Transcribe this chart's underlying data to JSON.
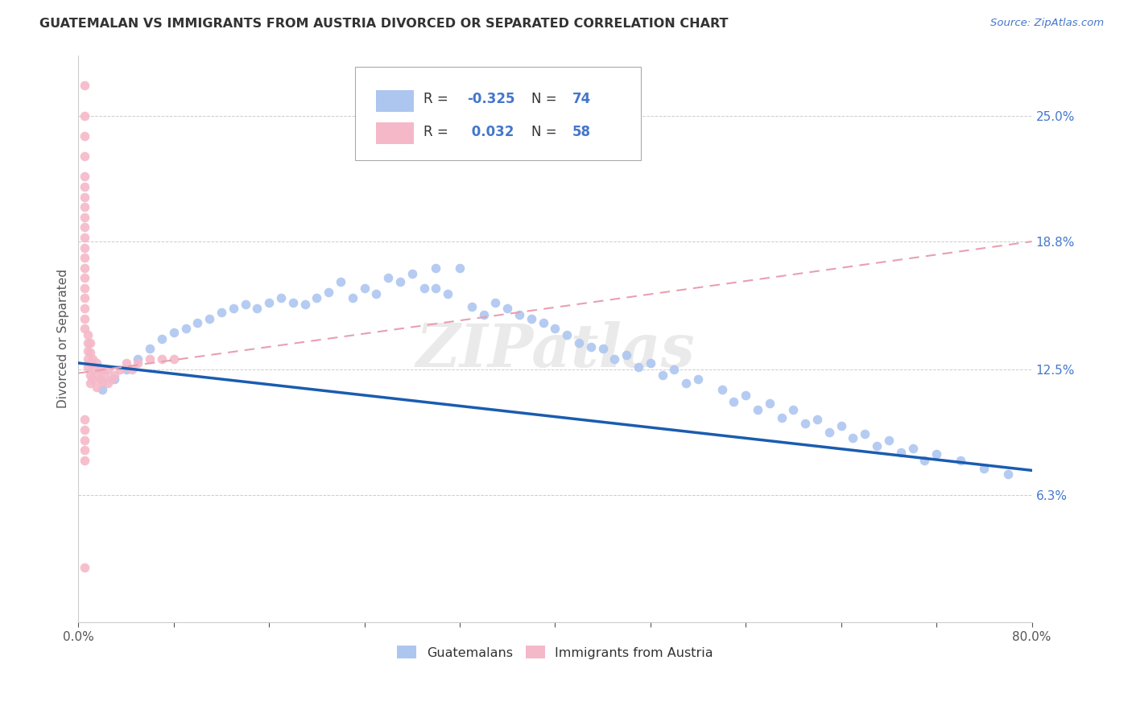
{
  "title": "GUATEMALAN VS IMMIGRANTS FROM AUSTRIA DIVORCED OR SEPARATED CORRELATION CHART",
  "source_text": "Source: ZipAtlas.com",
  "ylabel": "Divorced or Separated",
  "xlim": [
    0.0,
    0.8
  ],
  "ylim": [
    0.0,
    0.28
  ],
  "yticks": [
    0.063,
    0.125,
    0.188,
    0.25
  ],
  "ytick_labels": [
    "6.3%",
    "12.5%",
    "18.8%",
    "25.0%"
  ],
  "blue_color": "#adc6f0",
  "pink_color": "#f5b8c8",
  "blue_trend_color": "#1a5cb0",
  "pink_trend_color": "#e8a0b0",
  "blue_R": "-0.325",
  "blue_N": "74",
  "pink_R": "0.032",
  "pink_N": "58",
  "watermark": "ZIPatlas",
  "legend_label_blue": "Guatemalans",
  "legend_label_pink": "Immigrants from Austria",
  "blue_scatter_x": [
    0.32,
    0.3,
    0.28,
    0.26,
    0.27,
    0.29,
    0.22,
    0.24,
    0.25,
    0.23,
    0.21,
    0.2,
    0.19,
    0.18,
    0.17,
    0.16,
    0.15,
    0.14,
    0.13,
    0.12,
    0.11,
    0.1,
    0.09,
    0.08,
    0.07,
    0.06,
    0.05,
    0.04,
    0.03,
    0.02,
    0.35,
    0.36,
    0.37,
    0.38,
    0.39,
    0.4,
    0.42,
    0.44,
    0.46,
    0.48,
    0.5,
    0.52,
    0.54,
    0.56,
    0.58,
    0.6,
    0.62,
    0.64,
    0.66,
    0.68,
    0.7,
    0.72,
    0.74,
    0.76,
    0.78,
    0.3,
    0.31,
    0.33,
    0.34,
    0.41,
    0.43,
    0.45,
    0.47,
    0.49,
    0.51,
    0.55,
    0.57,
    0.59,
    0.61,
    0.63,
    0.65,
    0.67,
    0.69,
    0.71
  ],
  "blue_scatter_y": [
    0.175,
    0.175,
    0.172,
    0.17,
    0.168,
    0.165,
    0.168,
    0.165,
    0.162,
    0.16,
    0.163,
    0.16,
    0.157,
    0.158,
    0.16,
    0.158,
    0.155,
    0.157,
    0.155,
    0.153,
    0.15,
    0.148,
    0.145,
    0.143,
    0.14,
    0.135,
    0.13,
    0.125,
    0.12,
    0.115,
    0.158,
    0.155,
    0.152,
    0.15,
    0.148,
    0.145,
    0.138,
    0.135,
    0.132,
    0.128,
    0.125,
    0.12,
    0.115,
    0.112,
    0.108,
    0.105,
    0.1,
    0.097,
    0.093,
    0.09,
    0.086,
    0.083,
    0.08,
    0.076,
    0.073,
    0.165,
    0.162,
    0.156,
    0.152,
    0.142,
    0.136,
    0.13,
    0.126,
    0.122,
    0.118,
    0.109,
    0.105,
    0.101,
    0.098,
    0.094,
    0.091,
    0.087,
    0.084,
    0.08
  ],
  "pink_scatter_x": [
    0.005,
    0.005,
    0.005,
    0.005,
    0.005,
    0.005,
    0.005,
    0.005,
    0.005,
    0.005,
    0.005,
    0.005,
    0.005,
    0.005,
    0.005,
    0.005,
    0.005,
    0.005,
    0.005,
    0.005,
    0.008,
    0.008,
    0.008,
    0.008,
    0.008,
    0.01,
    0.01,
    0.01,
    0.01,
    0.01,
    0.012,
    0.012,
    0.012,
    0.015,
    0.015,
    0.015,
    0.018,
    0.018,
    0.02,
    0.02,
    0.022,
    0.025,
    0.025,
    0.028,
    0.03,
    0.035,
    0.04,
    0.045,
    0.05,
    0.06,
    0.07,
    0.08,
    0.005,
    0.005,
    0.005,
    0.005,
    0.005,
    0.005
  ],
  "pink_scatter_y": [
    0.265,
    0.25,
    0.24,
    0.23,
    0.22,
    0.215,
    0.21,
    0.205,
    0.2,
    0.195,
    0.19,
    0.185,
    0.18,
    0.175,
    0.17,
    0.165,
    0.16,
    0.155,
    0.15,
    0.145,
    0.142,
    0.138,
    0.134,
    0.13,
    0.126,
    0.138,
    0.133,
    0.128,
    0.122,
    0.118,
    0.13,
    0.125,
    0.12,
    0.128,
    0.122,
    0.116,
    0.125,
    0.12,
    0.125,
    0.119,
    0.122,
    0.125,
    0.118,
    0.12,
    0.122,
    0.125,
    0.128,
    0.125,
    0.128,
    0.13,
    0.13,
    0.13,
    0.1,
    0.095,
    0.09,
    0.085,
    0.08,
    0.027
  ],
  "blue_trend_x": [
    0.0,
    0.8
  ],
  "blue_trend_y": [
    0.128,
    0.075
  ],
  "pink_trend_x": [
    0.0,
    0.8
  ],
  "pink_trend_y": [
    0.123,
    0.188
  ]
}
